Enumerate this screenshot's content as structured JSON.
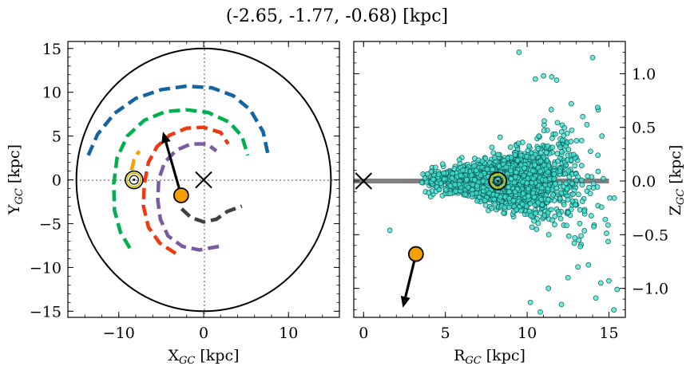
{
  "title": "(-2.65, -1.77, -0.68) [kpc]",
  "chart_data": [
    {
      "type": "scatter",
      "panel": "left",
      "xlabel": "X$_{GC}$ [kpc]",
      "xlabel_main": "X",
      "xlabel_sub": "GC",
      "xlabel_unit": " [kpc]",
      "ylabel_main": "Y",
      "ylabel_sub": "GC",
      "ylabel_unit": " [kpc]",
      "xlim": [
        -16,
        16
      ],
      "ylim": [
        -15.7,
        15.8
      ],
      "xticks": [
        -10,
        0,
        10
      ],
      "xtick_labels": [
        "−10",
        "0",
        "10"
      ],
      "yticks": [
        -15,
        -10,
        -5,
        0,
        5,
        10,
        15
      ],
      "ytick_labels": [
        "−15",
        "−10",
        "−5",
        "0",
        "5",
        "10",
        "15"
      ],
      "boundary_circle_radius": 15,
      "galactic_center": [
        0,
        0
      ],
      "sun_position": [
        -8.2,
        0
      ],
      "object_position": [
        -2.65,
        -1.77
      ],
      "velocity_arrow_end": [
        -4.8,
        5.5
      ],
      "spiral_arms": [
        {
          "color": "#1464a0",
          "points": [
            [
              -13.6,
              2.8
            ],
            [
              -12.5,
              5.2
            ],
            [
              -10.5,
              7.6
            ],
            [
              -8,
              9.3
            ],
            [
              -5,
              10.3
            ],
            [
              -2,
              10.7
            ],
            [
              1,
              10.5
            ],
            [
              3.5,
              9.6
            ],
            [
              5.5,
              8
            ],
            [
              7,
              5.5
            ],
            [
              7.6,
              2.8
            ]
          ]
        },
        {
          "color": "#00b050",
          "points": [
            [
              -8.7,
              -7.8
            ],
            [
              -9.8,
              -6
            ],
            [
              -10.5,
              -3.5
            ],
            [
              -10.6,
              -0.5
            ],
            [
              -10.2,
              2.5
            ],
            [
              -9,
              5
            ],
            [
              -7,
              6.8
            ],
            [
              -4.5,
              7.8
            ],
            [
              -2,
              8
            ],
            [
              0.5,
              7.7
            ],
            [
              3,
              6.6
            ],
            [
              4.5,
              5
            ],
            [
              5.2,
              2.8
            ]
          ]
        },
        {
          "color": "#ee3a12",
          "points": [
            [
              -3.3,
              -8.4
            ],
            [
              -5.2,
              -7.2
            ],
            [
              -6.5,
              -5.4
            ],
            [
              -7.1,
              -3
            ],
            [
              -7,
              -0.5
            ],
            [
              -6.5,
              2
            ],
            [
              -5.5,
              3.8
            ],
            [
              -4,
              5.1
            ],
            [
              -2,
              5.9
            ],
            [
              0,
              6
            ],
            [
              2,
              5.4
            ],
            [
              2.9,
              4.1
            ]
          ]
        },
        {
          "color": "#f5a000",
          "points": [
            [
              -8.5,
              1.1
            ],
            [
              -8.2,
              2.3
            ],
            [
              -7.6,
              3.3
            ]
          ]
        },
        {
          "color": "#7b5aa0",
          "points": [
            [
              1.8,
              -7.6
            ],
            [
              -0.5,
              -8
            ],
            [
              -2.5,
              -7.6
            ],
            [
              -4.2,
              -6.4
            ],
            [
              -5.1,
              -4.5
            ],
            [
              -5.4,
              -2.3
            ],
            [
              -5.3,
              0
            ],
            [
              -4.6,
              2
            ],
            [
              -3.2,
              3.4
            ],
            [
              -1.5,
              4.1
            ],
            [
              0.4,
              4.1
            ],
            [
              1.5,
              3.3
            ]
          ]
        },
        {
          "color": "#404040",
          "points": [
            [
              -2.6,
              -3.3
            ],
            [
              -1.5,
              -4.3
            ],
            [
              0,
              -4.8
            ],
            [
              1.5,
              -4.5
            ],
            [
              2.8,
              -3.6
            ],
            [
              4.5,
              -3
            ]
          ]
        }
      ]
    },
    {
      "type": "scatter",
      "panel": "right",
      "xlabel_main": "R",
      "xlabel_sub": "GC",
      "xlabel_unit": " [kpc]",
      "ylabel_main": "Z",
      "ylabel_sub": "GC",
      "ylabel_unit": " [kpc]",
      "xlim": [
        -0.6,
        16
      ],
      "ylim": [
        -1.27,
        1.3
      ],
      "xticks": [
        0,
        5,
        10,
        15
      ],
      "xtick_labels": [
        "0",
        "5",
        "10",
        "15"
      ],
      "yticks": [
        -1.0,
        -0.5,
        0.0,
        0.5,
        1.0
      ],
      "ytick_labels": [
        "−1.0",
        "−0.5",
        "0.0",
        "0.5",
        "1.0"
      ],
      "disk_line": {
        "x": [
          -0.6,
          15
        ],
        "z": 0
      },
      "galactic_center": [
        0,
        0
      ],
      "sun_position": [
        8.2,
        0
      ],
      "object_position": [
        3.2,
        -0.68
      ],
      "velocity_arrow_end": [
        2.4,
        -1.18
      ],
      "star_color": "#40e0d0",
      "star_cloud": {
        "count": 2000,
        "r_range": [
          3.5,
          15.5
        ],
        "z_scale_near": 0.05,
        "z_scale_far": 0.4,
        "outliers": [
          [
            9.5,
            1.2
          ],
          [
            14,
            1.15
          ],
          [
            11.5,
            0.97
          ],
          [
            11.8,
            0.94
          ],
          [
            10.5,
            0.95
          ],
          [
            11,
            0.98
          ],
          [
            12.7,
            0.72
          ],
          [
            13.4,
            0.6
          ],
          [
            1.6,
            -0.46
          ],
          [
            12.5,
            -0.9
          ],
          [
            15,
            -0.93
          ],
          [
            14.5,
            -0.95
          ],
          [
            15.5,
            -1.01
          ],
          [
            11.3,
            -1.0
          ],
          [
            10.2,
            -1.13
          ],
          [
            10.8,
            -1.22
          ],
          [
            12.1,
            -1.15
          ],
          [
            15.3,
            -1.2
          ],
          [
            14.2,
            -1.09
          ],
          [
            13.1,
            -0.8
          ]
        ]
      }
    }
  ]
}
